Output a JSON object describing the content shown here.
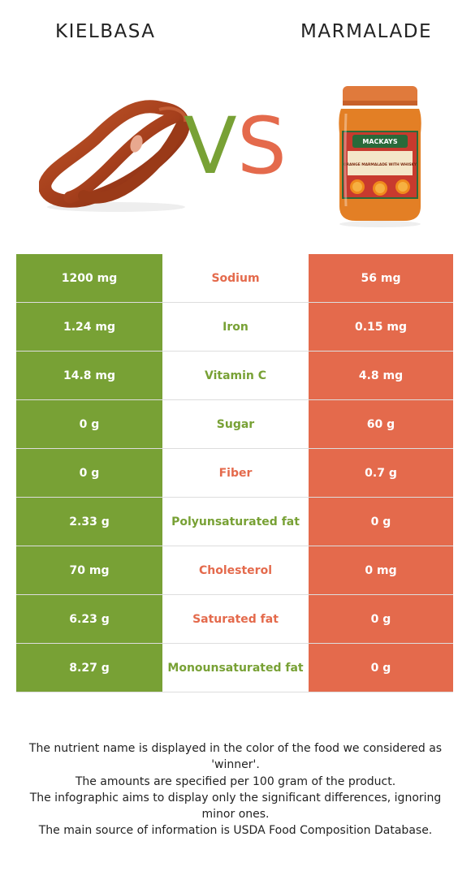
{
  "left_food": {
    "name": "KIELBASA",
    "color": "#78a135",
    "image": "kielbasa-sausage-image"
  },
  "right_food": {
    "name": "MARMALADE",
    "color": "#e46a4c",
    "image": "marmalade-jar-image",
    "jar_label": "ORANGE MARMALADE WITH WHISKY",
    "jar_brand": "MACKAYS"
  },
  "vs": {
    "v": "V",
    "s": "S"
  },
  "rows": [
    {
      "nutrient": "Sodium",
      "left": "1200 mg",
      "right": "56 mg",
      "winner": "right"
    },
    {
      "nutrient": "Iron",
      "left": "1.24 mg",
      "right": "0.15 mg",
      "winner": "left"
    },
    {
      "nutrient": "Vitamin C",
      "left": "14.8 mg",
      "right": "4.8 mg",
      "winner": "left"
    },
    {
      "nutrient": "Sugar",
      "left": "0 g",
      "right": "60 g",
      "winner": "left"
    },
    {
      "nutrient": "Fiber",
      "left": "0 g",
      "right": "0.7 g",
      "winner": "right"
    },
    {
      "nutrient": "Polyunsaturated fat",
      "left": "2.33 g",
      "right": "0 g",
      "winner": "left"
    },
    {
      "nutrient": "Cholesterol",
      "left": "70 mg",
      "right": "0 mg",
      "winner": "right"
    },
    {
      "nutrient": "Saturated fat",
      "left": "6.23 g",
      "right": "0 g",
      "winner": "right"
    },
    {
      "nutrient": "Monounsaturated fat",
      "left": "8.27 g",
      "right": "0 g",
      "winner": "left"
    }
  ],
  "footer": [
    "The nutrient name is displayed in the color of the food we considered as 'winner'.",
    "The amounts are specified per 100 gram of the product.",
    "The infographic aims to display only the significant differences, ignoring minor ones.",
    "The main source of information is USDA Food Composition Database."
  ]
}
